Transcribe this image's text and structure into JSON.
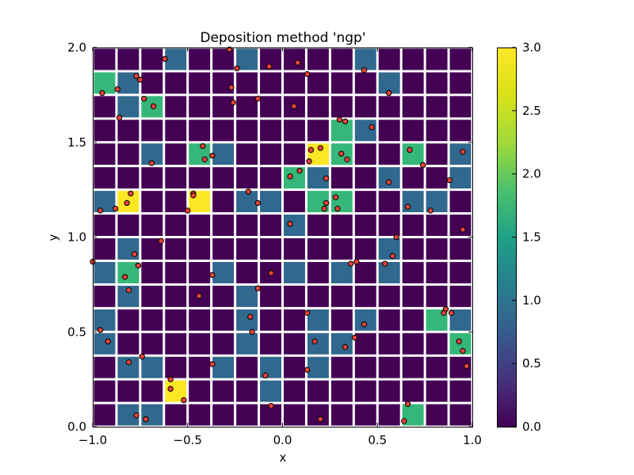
{
  "chart_data": {
    "type": "heatmap",
    "title": "Deposition method 'ngp'",
    "xlabel": "x",
    "ylabel": "y",
    "xlim": [
      -1.0,
      1.0
    ],
    "ylim": [
      0.0,
      2.0
    ],
    "x_ticks": [
      "−1.0",
      "−0.5",
      "0.0",
      "0.5",
      "1.0"
    ],
    "x_tick_values": [
      -1.0,
      -0.5,
      0.0,
      0.5,
      1.0
    ],
    "y_ticks": [
      "0.0",
      "0.5",
      "1.0",
      "1.5",
      "2.0"
    ],
    "y_tick_values": [
      0.0,
      0.5,
      1.0,
      1.5,
      2.0
    ],
    "grid": {
      "nx": 16,
      "ny": 16,
      "x_edges": [
        -1.0,
        1.0
      ],
      "y_edges": [
        0.0,
        2.0
      ],
      "values_top_to_bottom": [
        [
          0,
          0,
          0,
          1,
          0,
          0,
          1,
          0,
          0,
          0,
          0,
          1,
          0,
          0,
          0,
          0
        ],
        [
          2,
          1,
          0,
          0,
          0,
          0,
          0,
          0,
          0,
          0,
          0,
          0,
          1,
          0,
          0,
          0
        ],
        [
          0,
          1,
          2,
          0,
          0,
          0,
          0,
          0,
          0,
          0,
          0,
          0,
          0,
          0,
          0,
          0
        ],
        [
          0,
          0,
          0,
          0,
          0,
          0,
          0,
          0,
          0,
          0,
          2,
          1,
          0,
          0,
          0,
          0
        ],
        [
          0,
          0,
          1,
          0,
          2,
          1,
          0,
          0,
          0,
          3,
          2,
          0,
          0,
          2,
          0,
          1
        ],
        [
          0,
          0,
          0,
          0,
          0,
          0,
          0,
          0,
          2,
          1,
          0,
          0,
          1,
          0,
          0,
          1
        ],
        [
          1,
          3,
          0,
          0,
          3,
          0,
          1,
          1,
          0,
          2,
          2,
          0,
          0,
          1,
          1,
          0
        ],
        [
          0,
          0,
          0,
          0,
          0,
          0,
          0,
          0,
          1,
          0,
          0,
          0,
          0,
          0,
          0,
          0
        ],
        [
          0,
          1,
          0,
          0,
          0,
          0,
          0,
          0,
          0,
          0,
          0,
          0,
          1,
          0,
          0,
          0
        ],
        [
          1,
          2,
          0,
          0,
          0,
          1,
          0,
          0,
          1,
          0,
          1,
          0,
          1,
          0,
          0,
          0
        ],
        [
          0,
          1,
          0,
          0,
          0,
          0,
          1,
          0,
          0,
          0,
          0,
          0,
          0,
          0,
          0,
          0
        ],
        [
          1,
          0,
          0,
          0,
          0,
          0,
          1,
          0,
          0,
          1,
          0,
          1,
          0,
          0,
          2,
          1
        ],
        [
          1,
          0,
          0,
          0,
          0,
          0,
          1,
          0,
          0,
          1,
          1,
          0,
          0,
          0,
          0,
          2
        ],
        [
          0,
          1,
          1,
          0,
          0,
          1,
          0,
          1,
          0,
          1,
          0,
          0,
          0,
          0,
          0,
          0
        ],
        [
          0,
          0,
          0,
          3,
          0,
          0,
          0,
          1,
          0,
          0,
          0,
          0,
          0,
          0,
          0,
          0
        ],
        [
          0,
          1,
          1,
          0,
          0,
          0,
          0,
          0,
          0,
          0,
          0,
          0,
          0,
          2,
          0,
          0
        ]
      ]
    },
    "points": [
      {
        "x": -0.62,
        "y": 1.94
      },
      {
        "x": -0.28,
        "y": 1.99
      },
      {
        "x": -0.07,
        "y": 1.9
      },
      {
        "x": 0.08,
        "y": 1.92
      },
      {
        "x": 0.13,
        "y": 1.86
      },
      {
        "x": 0.43,
        "y": 1.88
      },
      {
        "x": -0.24,
        "y": 1.89
      },
      {
        "x": -0.95,
        "y": 1.76
      },
      {
        "x": -0.87,
        "y": 1.78
      },
      {
        "x": -0.77,
        "y": 1.85
      },
      {
        "x": -0.75,
        "y": 1.83
      },
      {
        "x": -0.27,
        "y": 1.79
      },
      {
        "x": 0.56,
        "y": 1.76
      },
      {
        "x": -0.73,
        "y": 1.73
      },
      {
        "x": -0.68,
        "y": 1.69
      },
      {
        "x": -0.26,
        "y": 1.71
      },
      {
        "x": -0.13,
        "y": 1.73
      },
      {
        "x": 0.06,
        "y": 1.69
      },
      {
        "x": -0.86,
        "y": 1.63
      },
      {
        "x": 0.3,
        "y": 1.62
      },
      {
        "x": 0.33,
        "y": 1.61
      },
      {
        "x": 0.47,
        "y": 1.58
      },
      {
        "x": -0.42,
        "y": 1.48
      },
      {
        "x": -0.37,
        "y": 1.43
      },
      {
        "x": -0.41,
        "y": 1.41
      },
      {
        "x": -0.69,
        "y": 1.39
      },
      {
        "x": 0.15,
        "y": 1.46
      },
      {
        "x": 0.2,
        "y": 1.47
      },
      {
        "x": 0.31,
        "y": 1.44
      },
      {
        "x": 0.34,
        "y": 1.41
      },
      {
        "x": 0.14,
        "y": 1.4
      },
      {
        "x": 0.67,
        "y": 1.46
      },
      {
        "x": 0.95,
        "y": 1.45
      },
      {
        "x": 0.74,
        "y": 1.38
      },
      {
        "x": 0.09,
        "y": 1.35
      },
      {
        "x": 0.04,
        "y": 1.32
      },
      {
        "x": 0.23,
        "y": 1.31
      },
      {
        "x": 0.88,
        "y": 1.3
      },
      {
        "x": 0.56,
        "y": 1.29
      },
      {
        "x": -0.8,
        "y": 1.23
      },
      {
        "x": -0.47,
        "y": 1.23
      },
      {
        "x": -0.47,
        "y": 1.22
      },
      {
        "x": -0.18,
        "y": 1.24
      },
      {
        "x": -0.82,
        "y": 1.18
      },
      {
        "x": -0.88,
        "y": 1.15
      },
      {
        "x": -0.96,
        "y": 1.14
      },
      {
        "x": -0.5,
        "y": 1.14
      },
      {
        "x": -0.13,
        "y": 1.18
      },
      {
        "x": 0.28,
        "y": 1.21
      },
      {
        "x": 0.23,
        "y": 1.18
      },
      {
        "x": 0.22,
        "y": 1.15
      },
      {
        "x": 0.29,
        "y": 1.15
      },
      {
        "x": 0.66,
        "y": 1.16
      },
      {
        "x": 0.78,
        "y": 1.14
      },
      {
        "x": 0.04,
        "y": 1.07
      },
      {
        "x": 0.6,
        "y": 1.0
      },
      {
        "x": 0.95,
        "y": 1.04
      },
      {
        "x": -0.64,
        "y": 0.98
      },
      {
        "x": -0.78,
        "y": 0.91
      },
      {
        "x": -1.0,
        "y": 0.87
      },
      {
        "x": -0.76,
        "y": 0.85
      },
      {
        "x": 0.36,
        "y": 0.86
      },
      {
        "x": 0.39,
        "y": 0.87
      },
      {
        "x": 0.54,
        "y": 0.86
      },
      {
        "x": 0.58,
        "y": 0.9
      },
      {
        "x": -0.83,
        "y": 0.79
      },
      {
        "x": -0.37,
        "y": 0.8
      },
      {
        "x": -0.06,
        "y": 0.81
      },
      {
        "x": -0.13,
        "y": 0.73
      },
      {
        "x": -0.81,
        "y": 0.72
      },
      {
        "x": -0.44,
        "y": 0.69
      },
      {
        "x": 0.86,
        "y": 0.62
      },
      {
        "x": 0.85,
        "y": 0.6
      },
      {
        "x": 0.89,
        "y": 0.6
      },
      {
        "x": 0.13,
        "y": 0.6
      },
      {
        "x": -0.17,
        "y": 0.58
      },
      {
        "x": -0.96,
        "y": 0.51
      },
      {
        "x": -0.16,
        "y": 0.5
      },
      {
        "x": 0.43,
        "y": 0.54
      },
      {
        "x": -0.92,
        "y": 0.45
      },
      {
        "x": 0.17,
        "y": 0.45
      },
      {
        "x": 0.38,
        "y": 0.47
      },
      {
        "x": 0.33,
        "y": 0.42
      },
      {
        "x": 0.93,
        "y": 0.45
      },
      {
        "x": 0.95,
        "y": 0.4
      },
      {
        "x": -0.74,
        "y": 0.37
      },
      {
        "x": -0.81,
        "y": 0.34
      },
      {
        "x": -0.37,
        "y": 0.33
      },
      {
        "x": 0.13,
        "y": 0.3
      },
      {
        "x": -0.09,
        "y": 0.27
      },
      {
        "x": 0.97,
        "y": 0.32
      },
      {
        "x": -0.59,
        "y": 0.25
      },
      {
        "x": -0.59,
        "y": 0.2
      },
      {
        "x": -0.52,
        "y": 0.14
      },
      {
        "x": -0.06,
        "y": 0.11
      },
      {
        "x": 0.66,
        "y": 0.12
      },
      {
        "x": -0.77,
        "y": 0.06
      },
      {
        "x": -0.72,
        "y": 0.04
      },
      {
        "x": 0.2,
        "y": 0.04
      },
      {
        "x": 0.64,
        "y": 0.03
      }
    ],
    "colorbar": {
      "min": 0.0,
      "max": 3.0,
      "ticks": [
        "0.0",
        "0.5",
        "1.0",
        "1.5",
        "2.0",
        "2.5",
        "3.0"
      ],
      "tick_values": [
        0.0,
        0.5,
        1.0,
        1.5,
        2.0,
        2.5,
        3.0
      ],
      "colormap": "viridis"
    },
    "colors": {
      "level_0": "#440154",
      "level_1": "#31688e",
      "level_2": "#35b779",
      "level_3": "#fde725",
      "point_fill": "#e8433a",
      "point_edge": "#000000",
      "cell_gap": "#ffffff"
    }
  }
}
